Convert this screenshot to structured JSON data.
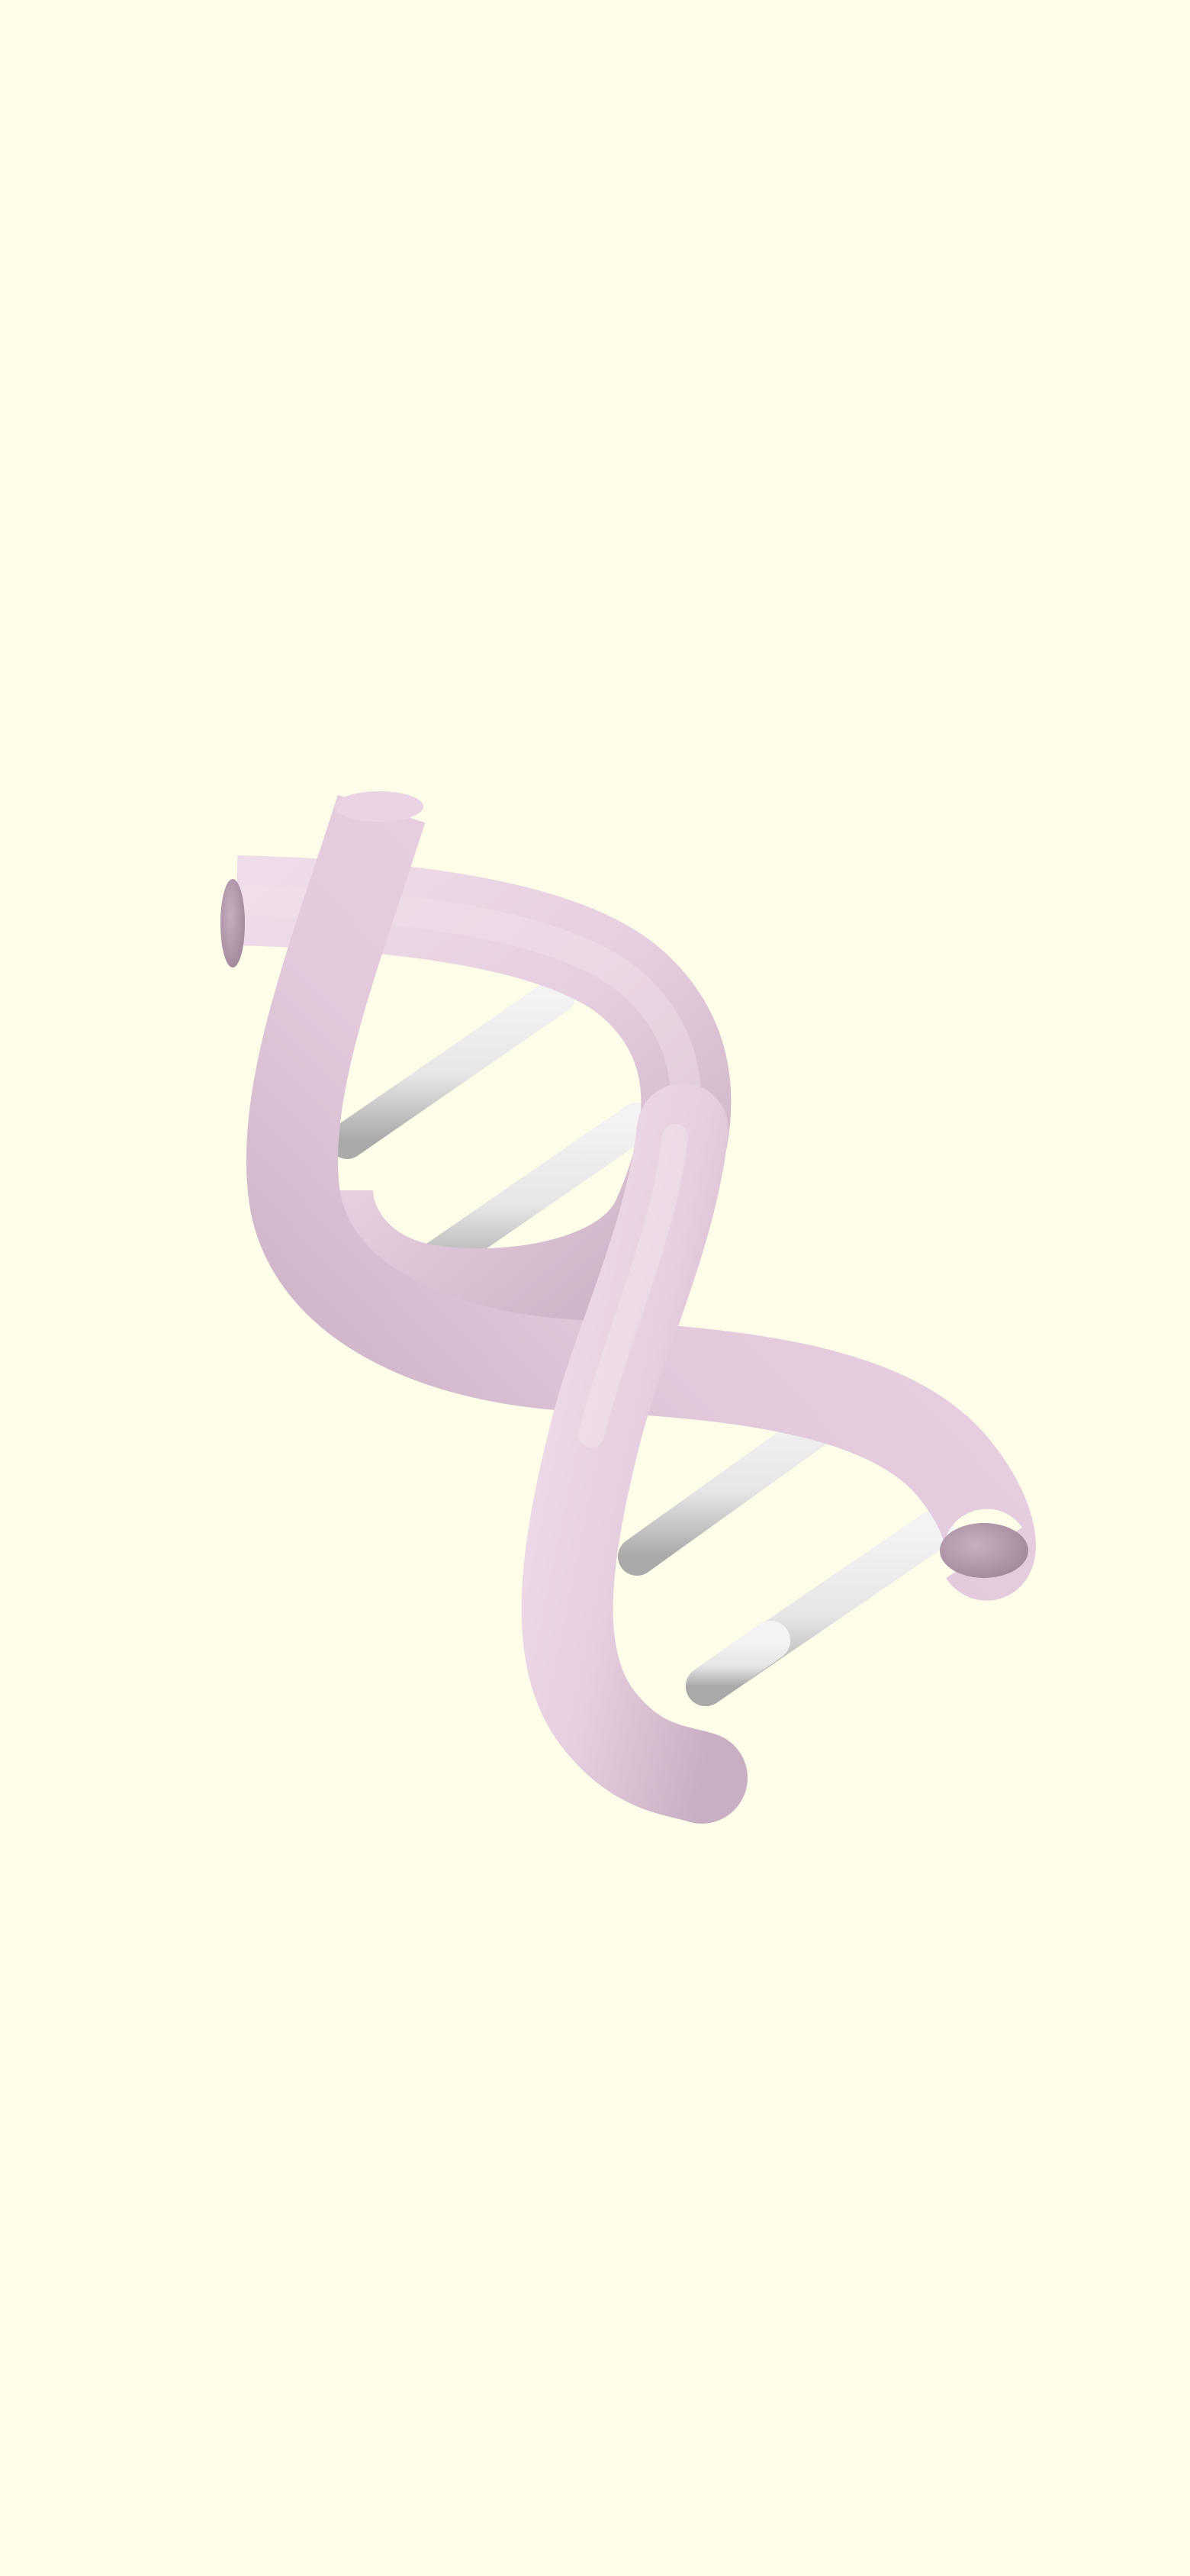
{
  "background_color": "#FDFDE9",
  "illustration": {
    "subject": "dna-double-helix-icon",
    "strand_color": "#ECD6E6",
    "strand_shadow_color": "#B79BB2",
    "rung_color": "#EBEBEB",
    "rung_shadow_color": "#9A9A9A",
    "rung_count": 4
  }
}
